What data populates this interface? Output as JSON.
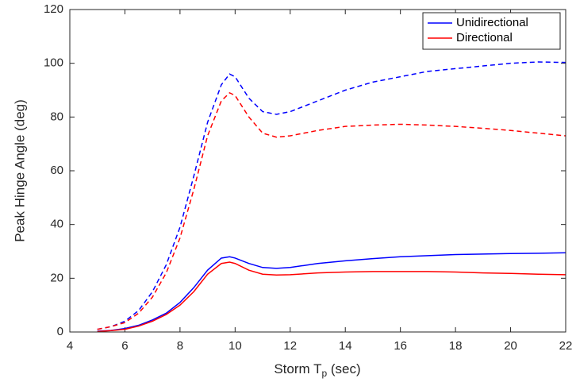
{
  "chart_data": {
    "type": "line",
    "xlabel": [
      "Storm T",
      "p",
      " (sec)"
    ],
    "ylabel": "Peak Hinge Angle (deg)",
    "x": [
      5,
      5.5,
      6,
      6.5,
      7,
      7.5,
      8,
      8.5,
      9,
      9.5,
      9.8,
      10,
      10.5,
      11,
      11.5,
      12,
      13,
      14,
      15,
      16,
      17,
      18,
      19,
      20,
      21,
      22
    ],
    "series": [
      {
        "name": "Unidirectional",
        "color": "#0000ff",
        "linestyle": "solid",
        "values": [
          0.3,
          0.6,
          1.3,
          2.5,
          4.5,
          7,
          11,
          16.5,
          23,
          27.5,
          28,
          27.5,
          25.5,
          24,
          23.7,
          24,
          25.5,
          26.5,
          27.3,
          28,
          28.4,
          28.8,
          29,
          29.2,
          29.3,
          29.5
        ]
      },
      {
        "name": "Directional",
        "color": "#ff0000",
        "linestyle": "solid",
        "values": [
          0.2,
          0.5,
          1,
          2.2,
          4,
          6.5,
          10,
          15,
          21.5,
          25.5,
          26,
          25.5,
          23,
          21.5,
          21.2,
          21.3,
          22,
          22.3,
          22.5,
          22.5,
          22.5,
          22.3,
          22,
          21.8,
          21.5,
          21.3
        ]
      },
      {
        "color": "#0000ff",
        "linestyle": "dashed",
        "values": [
          1,
          2,
          4,
          8,
          15,
          25,
          39,
          58,
          78,
          92,
          96,
          95,
          87,
          82,
          81,
          82,
          86,
          90,
          93,
          95,
          97,
          98,
          99,
          100,
          100.5,
          100.3
        ]
      },
      {
        "color": "#ff0000",
        "linestyle": "dashed",
        "values": [
          1,
          2,
          3.5,
          7,
          13,
          22,
          35,
          53,
          73,
          86,
          89,
          88,
          80,
          74,
          72.5,
          73,
          75,
          76.5,
          77,
          77.3,
          77,
          76.5,
          75.8,
          75,
          74,
          73
        ]
      }
    ],
    "xlim": [
      4,
      22
    ],
    "xticks": [
      4,
      6,
      8,
      10,
      12,
      14,
      16,
      18,
      20,
      22
    ],
    "ylim": [
      0,
      120
    ],
    "yticks": [
      0,
      20,
      40,
      60,
      80,
      100,
      120
    ],
    "legend": "northeast"
  }
}
